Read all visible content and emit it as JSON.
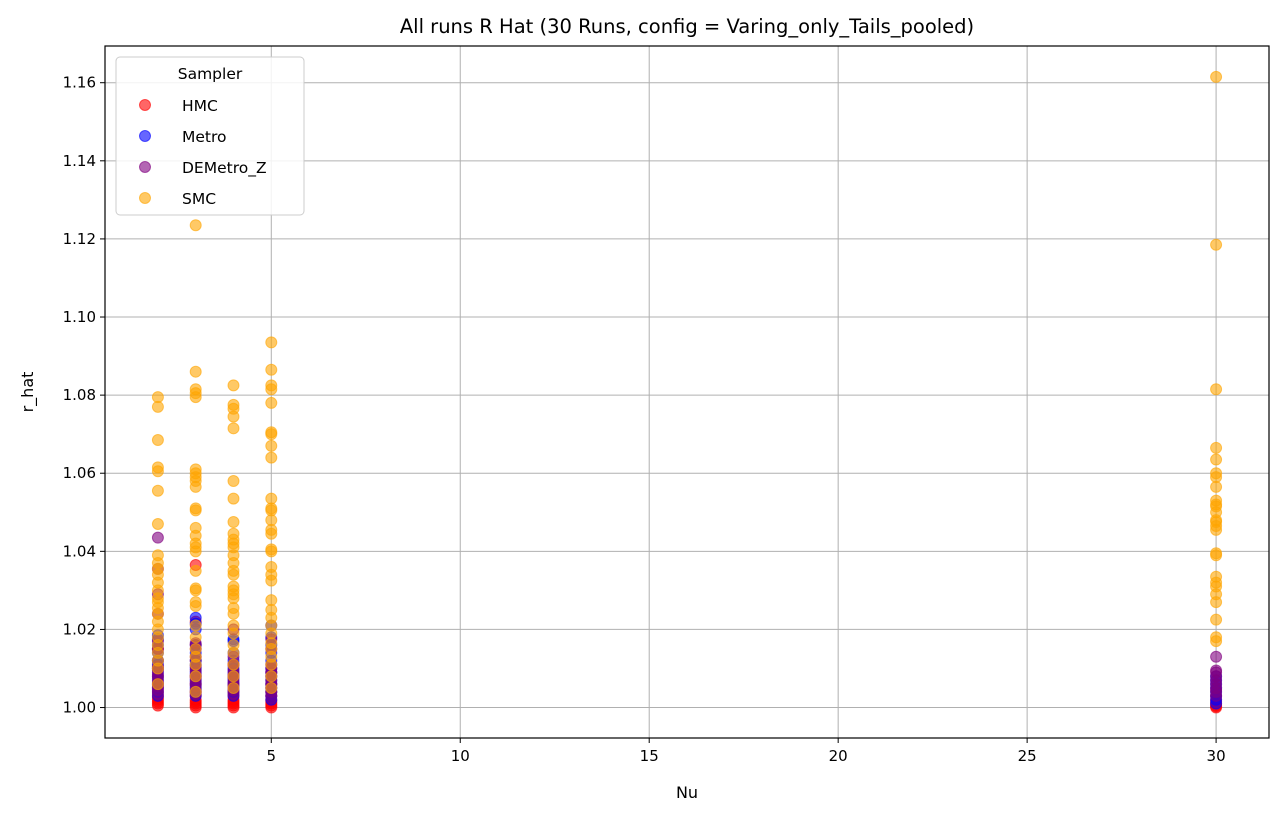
{
  "chart_data": {
    "type": "scatter",
    "title": "All runs R Hat (30 Runs, config = Varing_only_Tails_pooled)",
    "xlabel": "Nu",
    "ylabel": "r_hat",
    "xlim": [
      0.6,
      31.4
    ],
    "ylim": [
      0.9922,
      1.1694
    ],
    "xticks": [
      5,
      10,
      15,
      20,
      25,
      30
    ],
    "xtick_labels": [
      "5",
      "10",
      "15",
      "20",
      "25",
      "30"
    ],
    "yticks": [
      1.0,
      1.02,
      1.04,
      1.06,
      1.08,
      1.1,
      1.12,
      1.14,
      1.16
    ],
    "ytick_labels": [
      "1.00",
      "1.02",
      "1.04",
      "1.06",
      "1.08",
      "1.10",
      "1.12",
      "1.14",
      "1.16"
    ],
    "grid": true,
    "legend": {
      "title": "Sampler",
      "position": "top-left"
    },
    "series": [
      {
        "name": "HMC",
        "color": "#ff0000",
        "points": [
          [
            2,
            1.0005
          ],
          [
            2,
            1.001
          ],
          [
            2,
            1.0015
          ],
          [
            2,
            1.002
          ],
          [
            2,
            1.0025
          ],
          [
            2,
            1.003
          ],
          [
            2,
            1.004
          ],
          [
            2,
            1.005
          ],
          [
            2,
            1.006
          ],
          [
            2,
            1.008
          ],
          [
            2,
            1.01
          ],
          [
            2,
            1.012
          ],
          [
            2,
            1.015
          ],
          [
            3,
            1.0
          ],
          [
            3,
            1.0005
          ],
          [
            3,
            1.001
          ],
          [
            3,
            1.0015
          ],
          [
            3,
            1.002
          ],
          [
            3,
            1.003
          ],
          [
            3,
            1.004
          ],
          [
            3,
            1.006
          ],
          [
            3,
            1.008
          ],
          [
            3,
            1.012
          ],
          [
            3,
            1.016
          ],
          [
            3,
            1.022
          ],
          [
            3,
            1.0365
          ],
          [
            4,
            1.0
          ],
          [
            4,
            1.0005
          ],
          [
            4,
            1.001
          ],
          [
            4,
            1.0015
          ],
          [
            4,
            1.002
          ],
          [
            4,
            1.003
          ],
          [
            4,
            1.004
          ],
          [
            4,
            1.006
          ],
          [
            4,
            1.008
          ],
          [
            4,
            1.011
          ],
          [
            5,
            1.0
          ],
          [
            5,
            1.0005
          ],
          [
            5,
            1.001
          ],
          [
            5,
            1.0015
          ],
          [
            5,
            1.002
          ],
          [
            5,
            1.003
          ],
          [
            5,
            1.004
          ],
          [
            5,
            1.006
          ],
          [
            5,
            1.009
          ],
          [
            30,
            1.0
          ],
          [
            30,
            1.0003
          ],
          [
            30,
            1.0006
          ],
          [
            30,
            1.001
          ],
          [
            30,
            1.0015
          ],
          [
            30,
            1.002
          ],
          [
            30,
            1.003
          ],
          [
            30,
            1.0045
          ]
        ]
      },
      {
        "name": "Metro",
        "color": "#0000ff",
        "points": [
          [
            2,
            1.003
          ],
          [
            2,
            1.004
          ],
          [
            2,
            1.005
          ],
          [
            2,
            1.006
          ],
          [
            2,
            1.007
          ],
          [
            2,
            1.008
          ],
          [
            2,
            1.009
          ],
          [
            2,
            1.01
          ],
          [
            2,
            1.011
          ],
          [
            2,
            1.012
          ],
          [
            2,
            1.014
          ],
          [
            2,
            1.016
          ],
          [
            2,
            1.0175
          ],
          [
            2,
            1.0185
          ],
          [
            3,
            1.003
          ],
          [
            3,
            1.004
          ],
          [
            3,
            1.005
          ],
          [
            3,
            1.006
          ],
          [
            3,
            1.007
          ],
          [
            3,
            1.008
          ],
          [
            3,
            1.009
          ],
          [
            3,
            1.01
          ],
          [
            3,
            1.011
          ],
          [
            3,
            1.012
          ],
          [
            3,
            1.014
          ],
          [
            3,
            1.016
          ],
          [
            3,
            1.02
          ],
          [
            3,
            1.0215
          ],
          [
            3,
            1.023
          ],
          [
            4,
            1.003
          ],
          [
            4,
            1.004
          ],
          [
            4,
            1.005
          ],
          [
            4,
            1.006
          ],
          [
            4,
            1.007
          ],
          [
            4,
            1.008
          ],
          [
            4,
            1.009
          ],
          [
            4,
            1.01
          ],
          [
            4,
            1.012
          ],
          [
            4,
            1.014
          ],
          [
            4,
            1.017
          ],
          [
            4,
            1.0175
          ],
          [
            5,
            1.002
          ],
          [
            5,
            1.003
          ],
          [
            5,
            1.004
          ],
          [
            5,
            1.005
          ],
          [
            5,
            1.006
          ],
          [
            5,
            1.007
          ],
          [
            5,
            1.008
          ],
          [
            5,
            1.009
          ],
          [
            5,
            1.01
          ],
          [
            5,
            1.012
          ],
          [
            5,
            1.014
          ],
          [
            5,
            1.016
          ],
          [
            5,
            1.018
          ],
          [
            5,
            1.021
          ],
          [
            30,
            1.001
          ],
          [
            30,
            1.002
          ],
          [
            30,
            1.003
          ],
          [
            30,
            1.004
          ],
          [
            30,
            1.005
          ],
          [
            30,
            1.006
          ],
          [
            30,
            1.007
          ],
          [
            30,
            1.008
          ]
        ]
      },
      {
        "name": "DEMetro_Z",
        "color": "#800080",
        "points": [
          [
            2,
            1.0035
          ],
          [
            2,
            1.0045
          ],
          [
            2,
            1.0055
          ],
          [
            2,
            1.0065
          ],
          [
            2,
            1.0075
          ],
          [
            2,
            1.0085
          ],
          [
            2,
            1.0095
          ],
          [
            2,
            1.0105
          ],
          [
            2,
            1.015
          ],
          [
            2,
            1.017
          ],
          [
            2,
            1.024
          ],
          [
            2,
            1.029
          ],
          [
            2,
            1.0355
          ],
          [
            2,
            1.0435
          ],
          [
            3,
            1.0035
          ],
          [
            3,
            1.0045
          ],
          [
            3,
            1.0055
          ],
          [
            3,
            1.0065
          ],
          [
            3,
            1.0075
          ],
          [
            3,
            1.0085
          ],
          [
            3,
            1.0095
          ],
          [
            3,
            1.0105
          ],
          [
            3,
            1.013
          ],
          [
            3,
            1.015
          ],
          [
            3,
            1.0165
          ],
          [
            4,
            1.0035
          ],
          [
            4,
            1.0045
          ],
          [
            4,
            1.0055
          ],
          [
            4,
            1.0065
          ],
          [
            4,
            1.0075
          ],
          [
            4,
            1.0085
          ],
          [
            4,
            1.0095
          ],
          [
            4,
            1.011
          ],
          [
            4,
            1.013
          ],
          [
            4,
            1.02
          ],
          [
            5,
            1.003
          ],
          [
            5,
            1.004
          ],
          [
            5,
            1.005
          ],
          [
            5,
            1.006
          ],
          [
            5,
            1.007
          ],
          [
            5,
            1.008
          ],
          [
            5,
            1.009
          ],
          [
            5,
            1.01
          ],
          [
            5,
            1.011
          ],
          [
            5,
            1.015
          ],
          [
            5,
            1.0175
          ],
          [
            30,
            1.003
          ],
          [
            30,
            1.004
          ],
          [
            30,
            1.005
          ],
          [
            30,
            1.006
          ],
          [
            30,
            1.007
          ],
          [
            30,
            1.008
          ],
          [
            30,
            1.009
          ],
          [
            30,
            1.0095
          ],
          [
            30,
            1.013
          ]
        ]
      },
      {
        "name": "SMC",
        "color": "#ffa500",
        "points": [
          [
            2,
            1.006
          ],
          [
            2,
            1.01
          ],
          [
            2,
            1.012
          ],
          [
            2,
            1.014
          ],
          [
            2,
            1.016
          ],
          [
            2,
            1.018
          ],
          [
            2,
            1.02
          ],
          [
            2,
            1.022
          ],
          [
            2,
            1.024
          ],
          [
            2,
            1.0255
          ],
          [
            2,
            1.027
          ],
          [
            2,
            1.028
          ],
          [
            2,
            1.03
          ],
          [
            2,
            1.032
          ],
          [
            2,
            1.034
          ],
          [
            2,
            1.0355
          ],
          [
            2,
            1.037
          ],
          [
            2,
            1.039
          ],
          [
            2,
            1.047
          ],
          [
            2,
            1.0555
          ],
          [
            2,
            1.0605
          ],
          [
            2,
            1.0615
          ],
          [
            2,
            1.0685
          ],
          [
            2,
            1.077
          ],
          [
            2,
            1.0795
          ],
          [
            3,
            1.004
          ],
          [
            3,
            1.008
          ],
          [
            3,
            1.011
          ],
          [
            3,
            1.013
          ],
          [
            3,
            1.015
          ],
          [
            3,
            1.018
          ],
          [
            3,
            1.021
          ],
          [
            3,
            1.026
          ],
          [
            3,
            1.027
          ],
          [
            3,
            1.03
          ],
          [
            3,
            1.0305
          ],
          [
            3,
            1.035
          ],
          [
            3,
            1.04
          ],
          [
            3,
            1.041
          ],
          [
            3,
            1.042
          ],
          [
            3,
            1.044
          ],
          [
            3,
            1.046
          ],
          [
            3,
            1.0505
          ],
          [
            3,
            1.051
          ],
          [
            3,
            1.0565
          ],
          [
            3,
            1.058
          ],
          [
            3,
            1.059
          ],
          [
            3,
            1.06
          ],
          [
            3,
            1.061
          ],
          [
            3,
            1.0795
          ],
          [
            3,
            1.0805
          ],
          [
            3,
            1.0815
          ],
          [
            3,
            1.086
          ],
          [
            3,
            1.1235
          ],
          [
            4,
            1.005
          ],
          [
            4,
            1.008
          ],
          [
            4,
            1.011
          ],
          [
            4,
            1.014
          ],
          [
            4,
            1.016
          ],
          [
            4,
            1.019
          ],
          [
            4,
            1.021
          ],
          [
            4,
            1.024
          ],
          [
            4,
            1.0255
          ],
          [
            4,
            1.028
          ],
          [
            4,
            1.029
          ],
          [
            4,
            1.03
          ],
          [
            4,
            1.031
          ],
          [
            4,
            1.034
          ],
          [
            4,
            1.035
          ],
          [
            4,
            1.037
          ],
          [
            4,
            1.039
          ],
          [
            4,
            1.041
          ],
          [
            4,
            1.042
          ],
          [
            4,
            1.043
          ],
          [
            4,
            1.0445
          ],
          [
            4,
            1.0475
          ],
          [
            4,
            1.0535
          ],
          [
            4,
            1.058
          ],
          [
            4,
            1.0715
          ],
          [
            4,
            1.0745
          ],
          [
            4,
            1.0765
          ],
          [
            4,
            1.0775
          ],
          [
            4,
            1.0825
          ],
          [
            5,
            1.005
          ],
          [
            5,
            1.008
          ],
          [
            5,
            1.011
          ],
          [
            5,
            1.013
          ],
          [
            5,
            1.015
          ],
          [
            5,
            1.0165
          ],
          [
            5,
            1.019
          ],
          [
            5,
            1.021
          ],
          [
            5,
            1.023
          ],
          [
            5,
            1.025
          ],
          [
            5,
            1.0275
          ],
          [
            5,
            1.0325
          ],
          [
            5,
            1.034
          ],
          [
            5,
            1.036
          ],
          [
            5,
            1.04
          ],
          [
            5,
            1.0405
          ],
          [
            5,
            1.0445
          ],
          [
            5,
            1.0455
          ],
          [
            5,
            1.048
          ],
          [
            5,
            1.0505
          ],
          [
            5,
            1.051
          ],
          [
            5,
            1.0535
          ],
          [
            5,
            1.064
          ],
          [
            5,
            1.067
          ],
          [
            5,
            1.07
          ],
          [
            5,
            1.0705
          ],
          [
            5,
            1.078
          ],
          [
            5,
            1.0815
          ],
          [
            5,
            1.0825
          ],
          [
            5,
            1.0865
          ],
          [
            5,
            1.0935
          ],
          [
            30,
            1.017
          ],
          [
            30,
            1.018
          ],
          [
            30,
            1.0225
          ],
          [
            30,
            1.027
          ],
          [
            30,
            1.029
          ],
          [
            30,
            1.031
          ],
          [
            30,
            1.032
          ],
          [
            30,
            1.0335
          ],
          [
            30,
            1.039
          ],
          [
            30,
            1.0395
          ],
          [
            30,
            1.0455
          ],
          [
            30,
            1.0465
          ],
          [
            30,
            1.0475
          ],
          [
            30,
            1.048
          ],
          [
            30,
            1.05
          ],
          [
            30,
            1.0515
          ],
          [
            30,
            1.052
          ],
          [
            30,
            1.053
          ],
          [
            30,
            1.0565
          ],
          [
            30,
            1.059
          ],
          [
            30,
            1.06
          ],
          [
            30,
            1.0635
          ],
          [
            30,
            1.0665
          ],
          [
            30,
            1.0815
          ],
          [
            30,
            1.1185
          ],
          [
            30,
            1.1615
          ]
        ]
      }
    ]
  }
}
